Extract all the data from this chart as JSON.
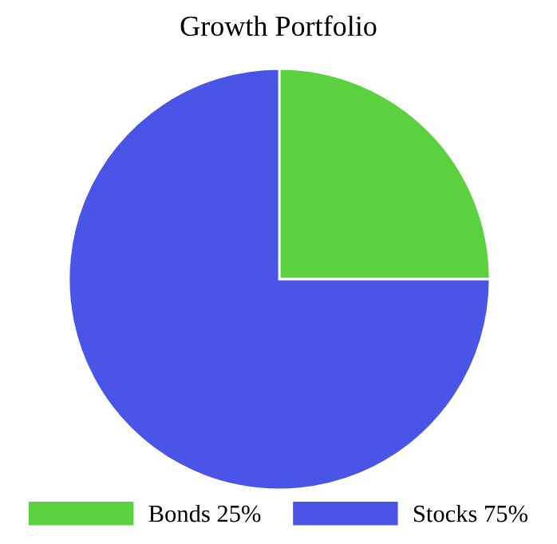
{
  "chart_data": {
    "type": "pie",
    "title": "Growth Portfolio",
    "categories": [
      "Bonds 25%",
      "Stocks 75%"
    ],
    "values": [
      25,
      75
    ],
    "colors": [
      "#5bd13f",
      "#4a55e8"
    ],
    "legend": "bottom"
  }
}
